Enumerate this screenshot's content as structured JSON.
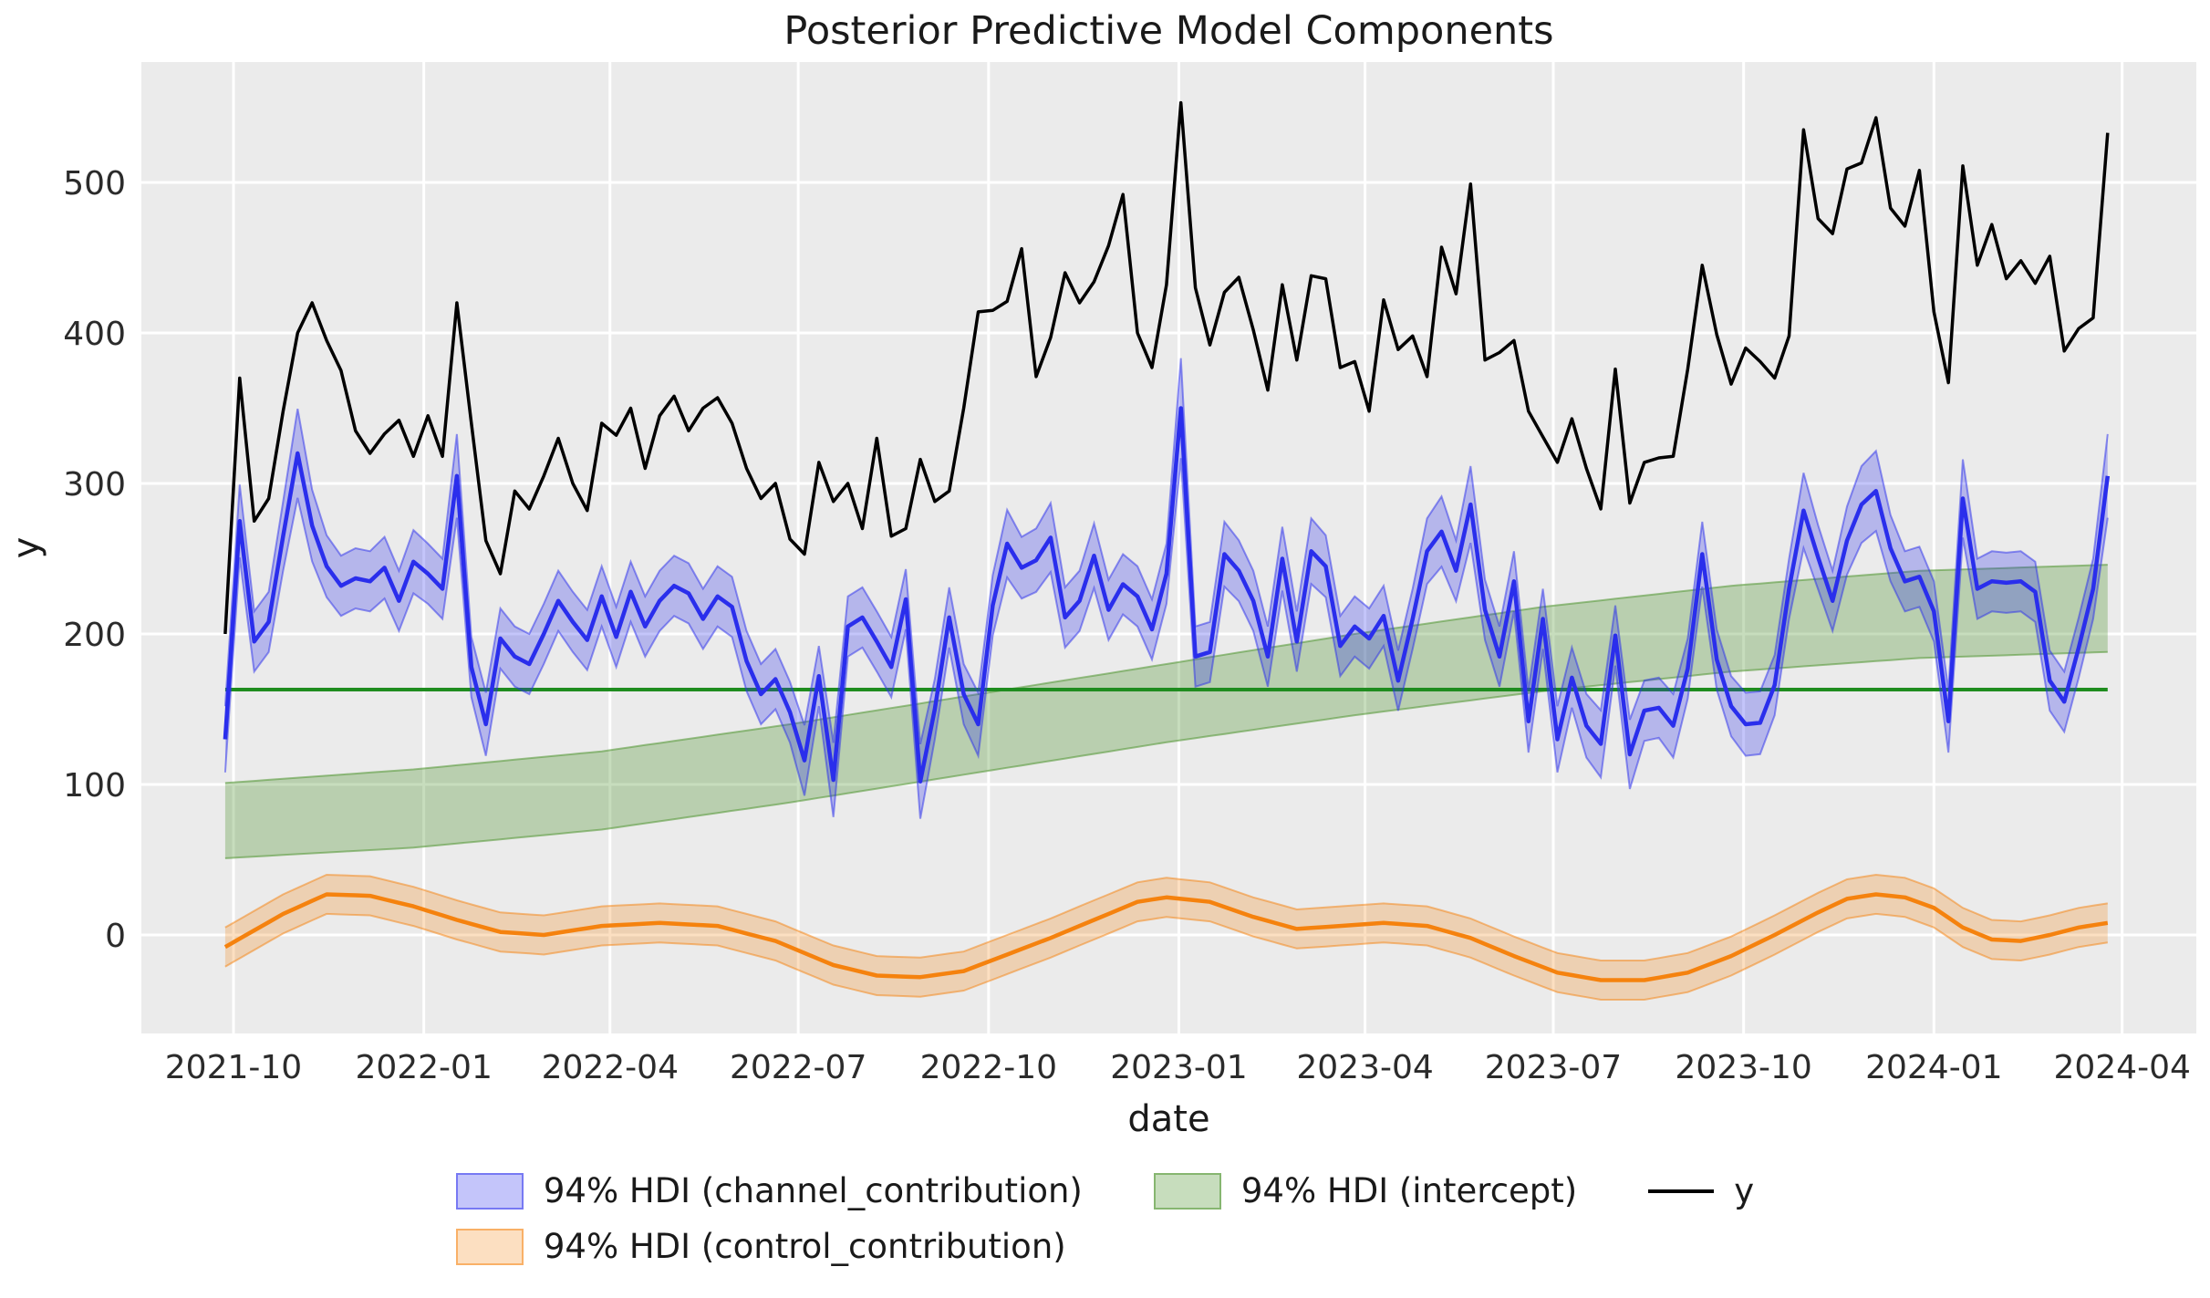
{
  "style": {
    "figure_bg": "#ffffff",
    "axes_bg": "#ebebeb",
    "grid_color": "#ffffff",
    "tick_text_color": "#2b2b2b",
    "title_color": "#1a1a1a",
    "y_line_color": "#000000",
    "channel_line_color": "#2a2eec",
    "channel_band_fill": "rgba(42,46,236,0.28)",
    "channel_band_edge": "rgba(42,46,236,0.50)",
    "intercept_line_color": "#1f8c1f",
    "intercept_band_fill": "rgba(80,150,50,0.32)",
    "intercept_band_edge": "rgba(80,150,50,0.55)",
    "control_line_color": "#f5820e",
    "control_band_fill": "rgba(245,130,14,0.26)",
    "control_band_edge": "rgba(245,130,14,0.50)"
  },
  "chart_data": {
    "type": "line",
    "title": "Posterior Predictive Model Components",
    "xlabel": "date",
    "ylabel": "y",
    "grid": true,
    "legend_position": "bottom-center",
    "x_start_date": "2021-09-27",
    "x_step_days": 7,
    "n_points": 131,
    "x_tick_labels": [
      "2021-10",
      "2022-01",
      "2022-04",
      "2022-07",
      "2022-10",
      "2023-01",
      "2023-04",
      "2023-07",
      "2023-10",
      "2024-01",
      "2024-04"
    ],
    "x_tick_days": [
      0,
      92,
      182,
      273,
      365,
      457,
      547,
      638,
      730,
      822,
      913
    ],
    "y_tick_values": [
      0,
      100,
      200,
      300,
      400,
      500
    ],
    "ylim": [
      -65,
      580
    ],
    "series": {
      "y": {
        "label": "y",
        "values": [
          200,
          370,
          275,
          290,
          348,
          400,
          420,
          395,
          375,
          335,
          320,
          333,
          342,
          318,
          345,
          318,
          420,
          340,
          262,
          240,
          295,
          283,
          305,
          330,
          300,
          282,
          340,
          332,
          350,
          310,
          345,
          358,
          335,
          350,
          357,
          340,
          310,
          290,
          300,
          263,
          253,
          314,
          288,
          300,
          270,
          330,
          265,
          270,
          316,
          288,
          295,
          350,
          414,
          415,
          421,
          456,
          371,
          397,
          440,
          420,
          434,
          458,
          492,
          400,
          377,
          432,
          553,
          430,
          392,
          427,
          437,
          402,
          362,
          432,
          382,
          438,
          436,
          377,
          381,
          348,
          422,
          389,
          398,
          371,
          457,
          426,
          499,
          382,
          387,
          395,
          348,
          331,
          314,
          343,
          310,
          283,
          376,
          287,
          314,
          317,
          318,
          376,
          445,
          399,
          366,
          390,
          381,
          370,
          398,
          535,
          476,
          466,
          509,
          513,
          543,
          483,
          471,
          508,
          414,
          367,
          511,
          445,
          472,
          436,
          448,
          433,
          451,
          388,
          403,
          410,
          533
        ]
      },
      "channel_contribution": {
        "label": "94% HDI (channel_contribution)",
        "hdi": "94%",
        "mean": [
          130,
          275,
          195,
          208,
          265,
          320,
          272,
          245,
          232,
          237,
          235,
          244,
          222,
          248,
          240,
          230,
          305,
          178,
          140,
          197,
          185,
          180,
          200,
          222,
          208,
          196,
          225,
          198,
          228,
          205,
          222,
          232,
          227,
          210,
          225,
          218,
          182,
          160,
          170,
          148,
          116,
          172,
          103,
          205,
          211,
          195,
          178,
          223,
          102,
          150,
          211,
          160,
          140,
          219,
          260,
          244,
          249,
          264,
          211,
          222,
          252,
          216,
          233,
          225,
          203,
          240,
          350,
          185,
          188,
          253,
          242,
          222,
          185,
          250,
          195,
          255,
          245,
          192,
          205,
          197,
          212,
          169,
          210,
          255,
          268,
          242,
          286,
          216,
          185,
          235,
          142,
          210,
          130,
          171,
          139,
          127,
          199,
          120,
          149,
          151,
          139,
          177,
          253,
          183,
          152,
          140,
          141,
          166,
          230,
          282,
          251,
          222,
          262,
          286,
          295,
          257,
          235,
          238,
          215,
          142,
          290,
          230,
          235,
          234,
          235,
          228,
          169,
          155,
          191,
          230,
          305
        ],
        "hdi_halfwidth_rule": {
          "base": 20,
          "above": 240,
          "above_factor": 0.12,
          "below": 150,
          "below_factor": 0.1
        }
      },
      "intercept": {
        "label": "94% HDI (intercept)",
        "hdi": "94%",
        "line_value": 163,
        "node_weeks": [
          0,
          13,
          26,
          39,
          52,
          65,
          78,
          91,
          104,
          117,
          130
        ],
        "hdi_low": [
          51,
          58,
          70,
          88,
          108,
          128,
          146,
          162,
          175,
          184,
          188
        ],
        "hdi_high": [
          101,
          110,
          122,
          140,
          160,
          180,
          200,
          218,
          232,
          242,
          246
        ]
      },
      "control_contribution": {
        "label": "94% HDI (control_contribution)",
        "hdi": "94%",
        "node_weeks": [
          0,
          4,
          7,
          10,
          13,
          16,
          19,
          22,
          26,
          30,
          34,
          38,
          42,
          45,
          48,
          51,
          54,
          57,
          60,
          63,
          65,
          68,
          71,
          74,
          77,
          80,
          83,
          86,
          89,
          92,
          95,
          98,
          101,
          104,
          107,
          110,
          112,
          114,
          116,
          118,
          120,
          122,
          124,
          126,
          128,
          130
        ],
        "mean": [
          -8,
          14,
          27,
          26,
          19,
          10,
          2,
          0,
          6,
          8,
          6,
          -4,
          -20,
          -27,
          -28,
          -24,
          -13,
          -2,
          10,
          22,
          25,
          22,
          12,
          4,
          6,
          8,
          6,
          -2,
          -14,
          -25,
          -30,
          -30,
          -25,
          -14,
          0,
          15,
          24,
          27,
          25,
          18,
          5,
          -3,
          -4,
          0,
          5,
          8
        ],
        "hdi_halfwidth": 13
      }
    }
  },
  "legend": {
    "items": [
      {
        "key": "channel_contribution",
        "label": "94% HDI (channel_contribution)",
        "swatch": "band"
      },
      {
        "key": "intercept",
        "label": "94% HDI (intercept)",
        "swatch": "band"
      },
      {
        "key": "y",
        "label": "y",
        "swatch": "line"
      },
      {
        "key": "control_contribution",
        "label": "94% HDI (control_contribution)",
        "swatch": "band"
      }
    ]
  }
}
